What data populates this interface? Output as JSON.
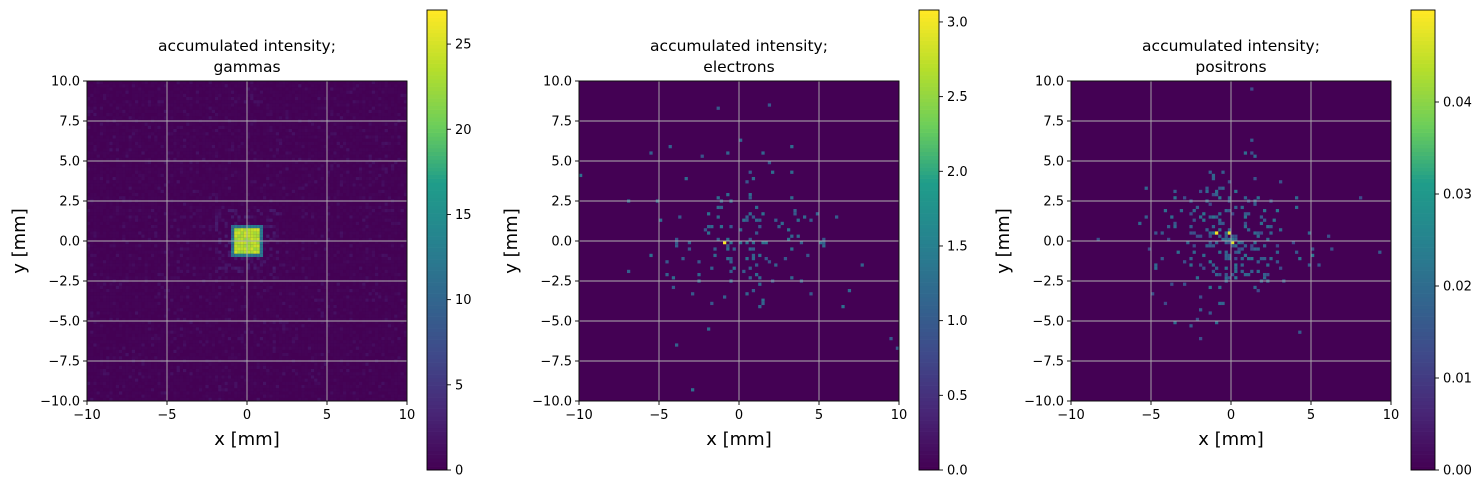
{
  "chart_data": [
    {
      "type": "heatmap",
      "title": "accumulated intensity;\ngammas",
      "title_lines": [
        "accumulated intensity;",
        "gammas"
      ],
      "xlabel": "x [mm]",
      "ylabel": "y [mm]",
      "xlim": [
        -10,
        10
      ],
      "ylim": [
        -10,
        10
      ],
      "x_ticks": [
        -10,
        -5,
        0,
        5,
        10
      ],
      "x_tick_labels": [
        "−10",
        "−5",
        "0",
        "5",
        "10"
      ],
      "y_ticks": [
        10.0,
        7.5,
        5.0,
        2.5,
        0.0,
        -2.5,
        -5.0,
        -7.5,
        -10.0
      ],
      "y_tick_labels": [
        "10.0",
        "7.5",
        "5.0",
        "2.5",
        "0.0",
        "−2.5",
        "−5.0",
        "−7.5",
        "−10.0"
      ],
      "grid": true,
      "colormap": "viridis",
      "colorbar": {
        "min": 0,
        "max": 27,
        "ticks": [
          0,
          5,
          10,
          15,
          20,
          25
        ],
        "tick_labels": [
          "0",
          "5",
          "10",
          "15",
          "20",
          "25"
        ]
      },
      "bins": 100,
      "description_of_values": {
        "core": {
          "x_range": [
            -0.8,
            0.8
          ],
          "y_range": [
            -0.8,
            0.8
          ],
          "value": 23
        },
        "halo_value": 10,
        "background_value": 0.3
      }
    },
    {
      "type": "heatmap",
      "title": "accumulated intensity;\nelectrons",
      "title_lines": [
        "accumulated intensity;",
        "electrons"
      ],
      "xlabel": "x [mm]",
      "ylabel": "y [mm]",
      "xlim": [
        -10,
        10
      ],
      "ylim": [
        -10,
        10
      ],
      "x_ticks": [
        -10,
        -5,
        0,
        5,
        10
      ],
      "x_tick_labels": [
        "−10",
        "−5",
        "0",
        "5",
        "10"
      ],
      "y_ticks": [
        10.0,
        7.5,
        5.0,
        2.5,
        0.0,
        -2.5,
        -5.0,
        -7.5,
        -10.0
      ],
      "y_tick_labels": [
        "10.0",
        "7.5",
        "5.0",
        "2.5",
        "0.0",
        "−2.5",
        "−5.0",
        "−7.5",
        "−10.0"
      ],
      "grid": true,
      "colormap": "viridis",
      "colorbar": {
        "min": 0,
        "max": 3.08,
        "ticks": [
          0.0,
          0.5,
          1.0,
          1.5,
          2.0,
          2.5,
          3.0
        ],
        "tick_labels": [
          "0.0",
          "0.5",
          "1.0",
          "1.5",
          "2.0",
          "2.5",
          "3.0"
        ]
      },
      "bins": 100,
      "peak": {
        "x": -0.9,
        "y": -0.1,
        "value": 3.05
      }
    },
    {
      "type": "heatmap",
      "title": "accumulated intensity;\npositrons",
      "title_lines": [
        "accumulated intensity;",
        "positrons"
      ],
      "xlabel": "x [mm]",
      "ylabel": "y [mm]",
      "xlim": [
        -10,
        10
      ],
      "ylim": [
        -10,
        10
      ],
      "x_ticks": [
        -10,
        -5,
        0,
        5,
        10
      ],
      "x_tick_labels": [
        "−10",
        "−5",
        "0",
        "5",
        "10"
      ],
      "y_ticks": [
        10.0,
        7.5,
        5.0,
        2.5,
        0.0,
        -2.5,
        -5.0,
        -7.5,
        -10.0
      ],
      "y_tick_labels": [
        "10.0",
        "7.5",
        "5.0",
        "2.5",
        "0.0",
        "−2.5",
        "−5.0",
        "−7.5",
        "−10.0"
      ],
      "grid": true,
      "colormap": "viridis",
      "colorbar": {
        "min": 0,
        "max": 0.05,
        "ticks": [
          0.0,
          0.01,
          0.02,
          0.03,
          0.04
        ],
        "tick_labels": [
          "0.00",
          "0.01",
          "0.02",
          "0.03",
          "0.04"
        ]
      },
      "bins": 100,
      "peaks": [
        {
          "x": -0.9,
          "y": 0.4,
          "value": 0.049
        },
        {
          "x": -0.1,
          "y": 0.5,
          "value": 0.048
        },
        {
          "x": 0.0,
          "y": -0.2,
          "value": 0.047
        }
      ]
    }
  ],
  "colors": {
    "grid": "#b0b0b0",
    "viridis_low": "#440154",
    "viridis_mid": "#21918c",
    "viridis_high": "#fde725"
  }
}
